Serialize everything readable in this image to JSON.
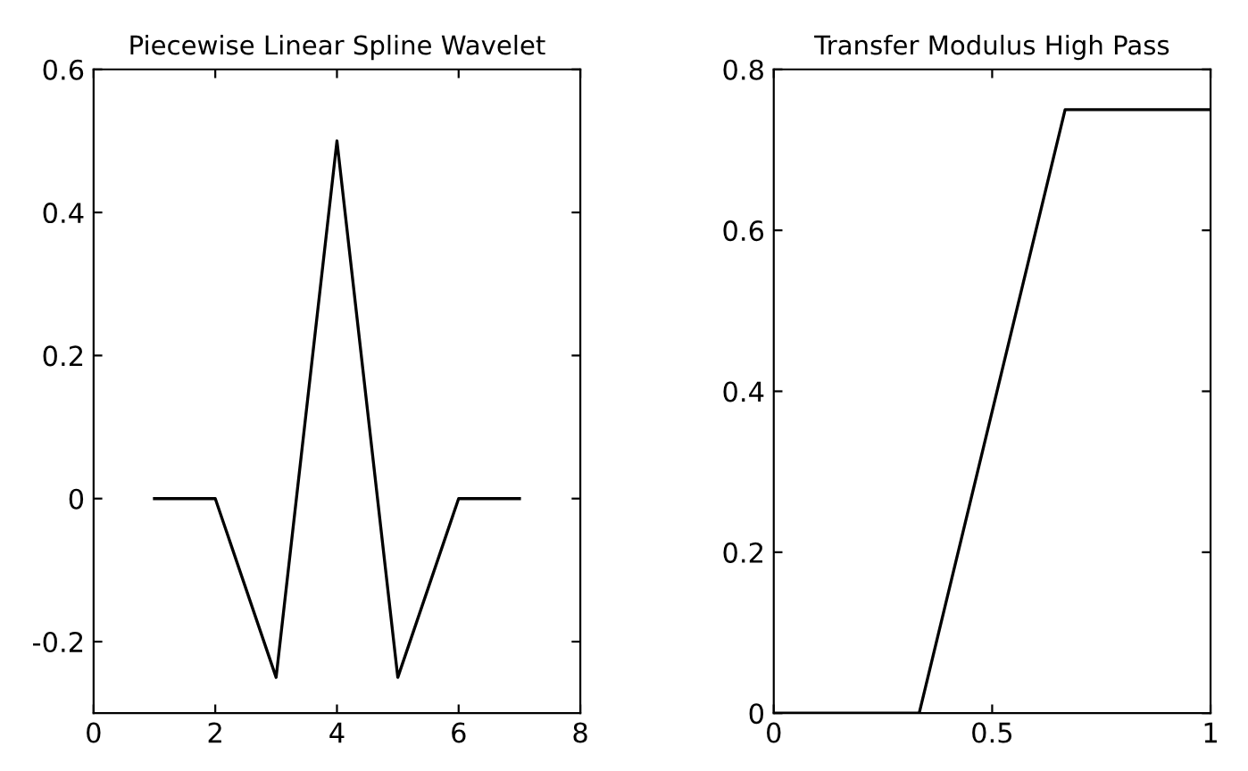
{
  "chart_data": [
    {
      "type": "line",
      "title": "Piecewise Linear Spline Wavelet",
      "x": [
        1,
        2,
        3,
        4,
        5,
        6,
        7
      ],
      "series": [
        {
          "color": "#000000",
          "values": [
            0,
            0,
            -0.25,
            0.5,
            -0.25,
            0,
            0
          ]
        }
      ],
      "xlim": [
        0,
        8
      ],
      "xticks": [
        0,
        2,
        4,
        6,
        8
      ],
      "ylim": [
        -0.3,
        0.6
      ],
      "yticks": [
        -0.2,
        0,
        0.2,
        0.4,
        0.6
      ],
      "grid": false
    },
    {
      "type": "line",
      "title": "Transfer Modulus High Pass",
      "x": [
        0,
        0.333,
        0.667,
        1
      ],
      "series": [
        {
          "color": "#000000",
          "values": [
            0,
            0,
            0.75,
            0.75
          ]
        }
      ],
      "xlim": [
        0,
        1
      ],
      "xticks": [
        0,
        0.5,
        1
      ],
      "ylim": [
        0,
        0.8
      ],
      "yticks": [
        0,
        0.2,
        0.4,
        0.6,
        0.8
      ],
      "grid": false
    }
  ]
}
